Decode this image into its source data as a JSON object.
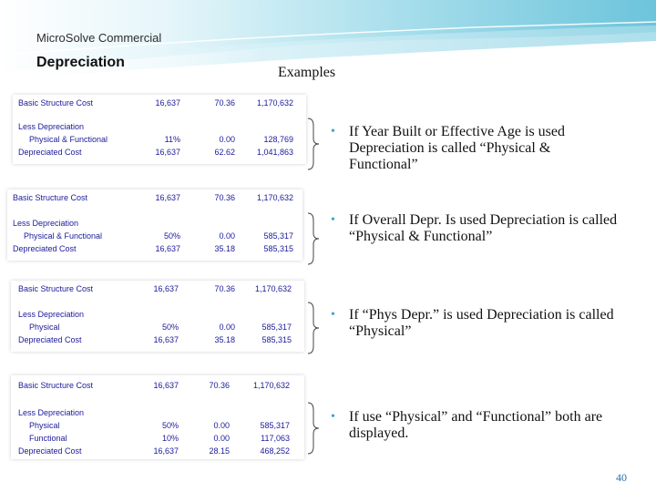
{
  "header": {
    "brand": "MicroSolve Commercial",
    "title": "Depreciation",
    "examples_label": "Examples"
  },
  "examples": [
    {
      "rows": [
        {
          "label": "Basic Structure Cost",
          "v1": "16,637",
          "v2": "70.36",
          "v3": "1,170,632"
        },
        {
          "label": "Less Depreciation",
          "v1": "",
          "v2": "",
          "v3": ""
        },
        {
          "label": "Physical & Functional",
          "v1": "11%",
          "v2": "0.00",
          "v3": "128,769"
        },
        {
          "label": "Depreciated Cost",
          "v1": "16,637",
          "v2": "62.62",
          "v3": "1,041,863"
        }
      ],
      "bullet": "If Year Built or Effective Age is used Depreciation is called “Physical & Functional”"
    },
    {
      "rows": [
        {
          "label": "Basic Structure Cost",
          "v1": "16,637",
          "v2": "70.36",
          "v3": "1,170,632"
        },
        {
          "label": "Less Depreciation",
          "v1": "",
          "v2": "",
          "v3": ""
        },
        {
          "label": "Physical & Functional",
          "v1": "50%",
          "v2": "0.00",
          "v3": "585,317"
        },
        {
          "label": "Depreciated Cost",
          "v1": "16,637",
          "v2": "35.18",
          "v3": "585,315"
        }
      ],
      "bullet": "If Overall Depr. Is used Depreciation is called “Physical & Functional”"
    },
    {
      "rows": [
        {
          "label": "Basic Structure Cost",
          "v1": "16,637",
          "v2": "70.36",
          "v3": "1,170,632"
        },
        {
          "label": "Less Depreciation",
          "v1": "",
          "v2": "",
          "v3": ""
        },
        {
          "label": "Physical",
          "v1": "50%",
          "v2": "0.00",
          "v3": "585,317"
        },
        {
          "label": "Depreciated Cost",
          "v1": "16,637",
          "v2": "35.18",
          "v3": "585,315"
        }
      ],
      "bullet": "If “Phys Depr.” is used Depreciation is called “Physical”"
    },
    {
      "rows": [
        {
          "label": "Basic Structure Cost",
          "v1": "16,637",
          "v2": "70.36",
          "v3": "1,170,632"
        },
        {
          "label": "Less Depreciation",
          "v1": "",
          "v2": "",
          "v3": ""
        },
        {
          "label": "Physical",
          "v1": "50%",
          "v2": "0.00",
          "v3": "585,317"
        },
        {
          "label": "Functional",
          "v1": "10%",
          "v2": "0.00",
          "v3": "117,063"
        },
        {
          "label": "Depreciated Cost",
          "v1": "16,637",
          "v2": "28.15",
          "v3": "468,252"
        }
      ],
      "bullet": "If use “Physical” and “Functional” both are displayed."
    }
  ],
  "footer": {
    "page_number": "40"
  },
  "colors": {
    "band": "#8fd3e4",
    "band_light": "#d8f1f7",
    "bullet": "#3aa6c9",
    "table_text": "#1a1a9a"
  }
}
